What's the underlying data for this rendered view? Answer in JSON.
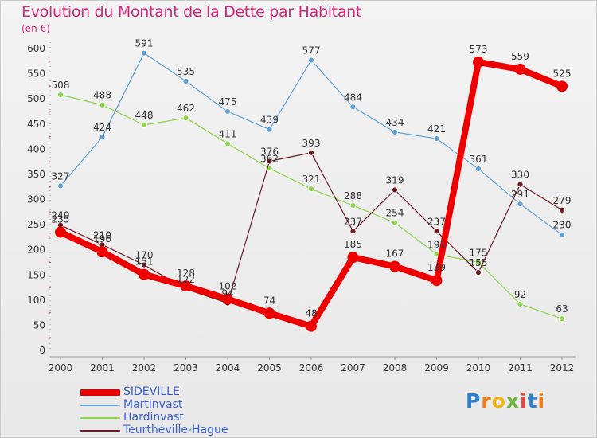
{
  "title": "Evolution du Montant de la Dette par Habitant",
  "subtitle": "(en €)",
  "logo": {
    "text": "Proxiti",
    "letters": [
      "P",
      "r",
      "o",
      "x",
      "i",
      "t",
      "i"
    ],
    "colors": [
      "#2d7fd0",
      "#f07d13",
      "#f0b513",
      "#6db33f",
      "#e8423f",
      "#2d7fd0",
      "#f07d13"
    ]
  },
  "chart_data": {
    "type": "line",
    "x": [
      "2000",
      "2001",
      "2002",
      "2003",
      "2004",
      "2005",
      "2006",
      "2007",
      "2008",
      "2009",
      "2010",
      "2011",
      "2012"
    ],
    "ylim": [
      0,
      600
    ],
    "yticks": [
      0,
      50,
      100,
      150,
      200,
      250,
      300,
      350,
      400,
      450,
      500,
      550,
      600
    ],
    "grid": false,
    "legend_position": "bottom-left",
    "series": [
      {
        "name": "Martinvast",
        "color": "#5f9fd6",
        "values": [
          327,
          424,
          591,
          535,
          475,
          439,
          577,
          484,
          434,
          421,
          361,
          291,
          230
        ]
      },
      {
        "name": "Hardinvast",
        "color": "#8ed44c",
        "values": [
          508,
          488,
          448,
          462,
          411,
          362,
          321,
          288,
          254,
          191,
          175,
          92,
          63
        ]
      },
      {
        "name": "Teurthéville-Hague",
        "color": "#6b1a1f",
        "values": [
          249,
          210,
          170,
          122,
          94,
          376,
          393,
          237,
          319,
          237,
          155,
          330,
          279
        ]
      },
      {
        "name": "SIDEVILLE",
        "color": "#ee0000",
        "values": [
          235,
          196,
          151,
          128,
          102,
          74,
          48,
          185,
          167,
          139,
          573,
          559,
          525
        ]
      }
    ]
  },
  "legend": [
    {
      "name": "SIDEVILLE",
      "color": "#ee0000"
    },
    {
      "name": "Martinvast",
      "color": "#5f9fd6"
    },
    {
      "name": "Hardinvast",
      "color": "#8ed44c"
    },
    {
      "name": "Teurthéville-Hague",
      "color": "#6b1a1f"
    }
  ]
}
